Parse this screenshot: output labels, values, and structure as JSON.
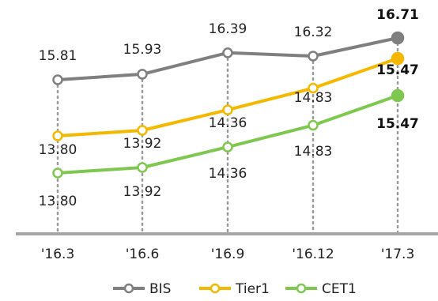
{
  "chart_data": {
    "type": "line",
    "categories": [
      "'16.3",
      "'16.6",
      "'16.9",
      "'16.12",
      "'17.3"
    ],
    "series": [
      {
        "name": "BIS",
        "color": "#7f7f7f",
        "values": [
          15.81,
          15.93,
          16.39,
          16.32,
          16.71
        ]
      },
      {
        "name": "Tier1",
        "color": "#f5b800",
        "values": [
          13.8,
          13.92,
          14.36,
          14.83,
          15.47
        ]
      },
      {
        "name": "CET1",
        "color": "#7ec850",
        "values": [
          13.8,
          13.92,
          14.36,
          14.83,
          15.47
        ]
      }
    ],
    "labels": {
      "BIS": [
        "15.81",
        "15.93",
        "16.39",
        "16.32",
        "16.71"
      ],
      "Tier1": [
        "13.80",
        "13.92",
        "14.36",
        "14.83",
        "15.47"
      ],
      "CET1": [
        "13.80",
        "13.92",
        "14.36",
        "14.83",
        "15.47"
      ]
    },
    "legend": "bottom",
    "grid": false
  }
}
